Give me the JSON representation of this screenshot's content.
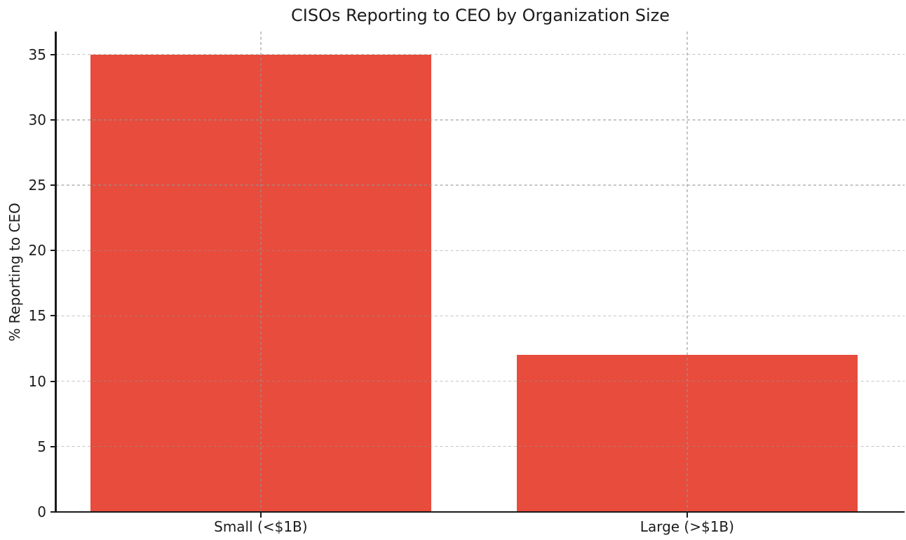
{
  "chart_data": {
    "type": "bar",
    "title": "CISOs Reporting to CEO by Organization Size",
    "xlabel": "",
    "ylabel": "% Reporting to CEO",
    "categories": [
      "Small (<$1B)",
      "Large (>$1B)"
    ],
    "values": [
      35,
      12
    ],
    "yticks": [
      0,
      5,
      10,
      15,
      20,
      25,
      30,
      35
    ],
    "ylim": [
      0,
      36.75
    ],
    "bar_color": "#e74c3c",
    "axis_color": "#1a1a1a",
    "grid": {
      "style": "dashed",
      "orientation": "horizontal-and-vertical",
      "color": "#c9c9c9",
      "drawn_over_bars": true
    },
    "legend": null
  }
}
